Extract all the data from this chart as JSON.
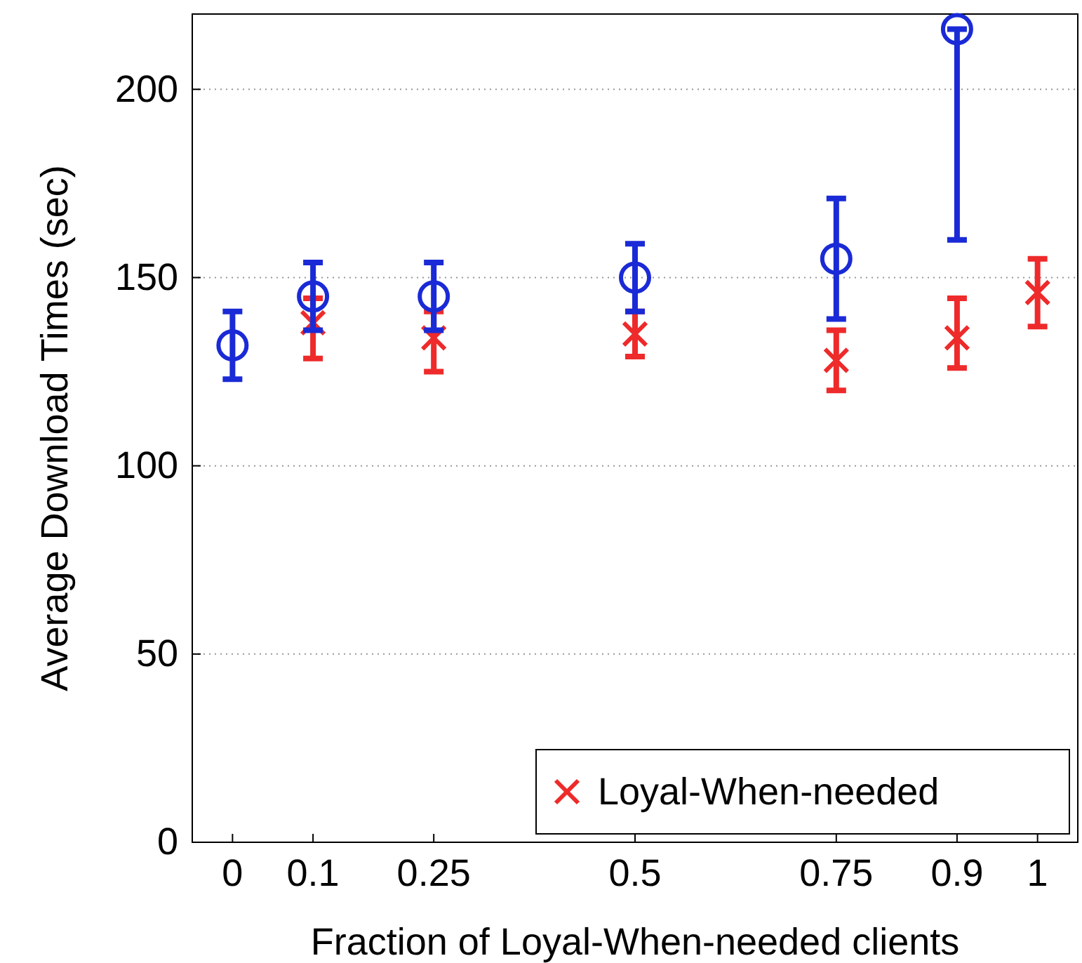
{
  "chart_data": {
    "type": "scatter",
    "xlabel": "Fraction of Loyal-When-needed clients",
    "ylabel": "Average Download Times (sec)",
    "xlim": [
      -0.05,
      1.05
    ],
    "xticks": [
      0,
      0.1,
      0.25,
      0.5,
      0.75,
      0.9,
      1
    ],
    "ylim": [
      0,
      220
    ],
    "yticks": [
      0,
      50,
      100,
      150,
      200
    ],
    "grid": "y",
    "legend": "bottom right",
    "series": [
      {
        "name": "Loyal-When-needed",
        "color": "#ee2a2a",
        "marker": "cross",
        "x": [
          0.1,
          0.25,
          0.5,
          0.75,
          0.9,
          1
        ],
        "values": [
          138,
          134,
          135,
          128,
          134,
          146
        ],
        "errors": [
          [
            128.5,
            144.5
          ],
          [
            125,
            141
          ],
          [
            129,
            141
          ],
          [
            120,
            136
          ],
          [
            126,
            144.5
          ],
          [
            137,
            155
          ]
        ]
      },
      {
        "color": "#1a2ad6",
        "marker": "circle",
        "x": [
          0,
          0.1,
          0.25,
          0.5,
          0.75,
          0.9
        ],
        "values": [
          132,
          145,
          145,
          150,
          155,
          216
        ],
        "errors": [
          [
            123,
            141
          ],
          [
            136,
            154
          ],
          [
            136,
            154
          ],
          [
            141,
            159
          ],
          [
            139,
            171
          ],
          [
            160,
            216
          ]
        ]
      }
    ]
  }
}
